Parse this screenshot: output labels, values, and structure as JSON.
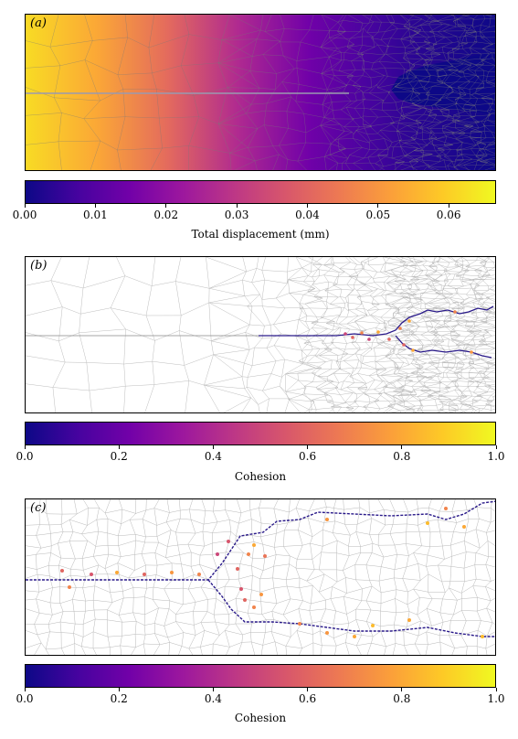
{
  "panels": [
    {
      "label": "(a)"
    },
    {
      "label": "(b)"
    },
    {
      "label": "(c)"
    }
  ],
  "colorbars": [
    {
      "title": "Total displacement (mm)",
      "ticks": [
        "0.00",
        "0.01",
        "0.02",
        "0.03",
        "0.04",
        "0.05",
        "0.06"
      ],
      "tick_values": [
        0,
        0.01,
        0.02,
        0.03,
        0.04,
        0.05,
        0.06
      ],
      "max": 0.0667
    },
    {
      "title": "Cohesion",
      "ticks": [
        "0.0",
        "0.2",
        "0.4",
        "0.6",
        "0.8",
        "1.0"
      ],
      "tick_values": [
        0,
        0.2,
        0.4,
        0.6,
        0.8,
        1.0
      ],
      "max": 1.0
    },
    {
      "title": "Cohesion",
      "ticks": [
        "0.0",
        "0.2",
        "0.4",
        "0.6",
        "0.8",
        "1.0"
      ],
      "tick_values": [
        0,
        0.2,
        0.4,
        0.6,
        0.8,
        1.0
      ],
      "max": 1.0
    }
  ],
  "colormap": "plasma",
  "colors": {
    "plasma": [
      "#0d0887",
      "#46039f",
      "#7201a8",
      "#9c179e",
      "#bd3786",
      "#d8576b",
      "#ed7953",
      "#fb9f3a",
      "#fdca26",
      "#f0f921"
    ],
    "mesh": "#b0b0b0"
  }
}
